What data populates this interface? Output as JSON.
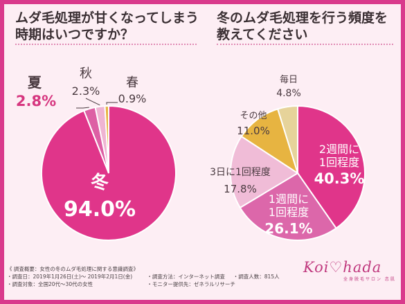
{
  "left_title": {
    "line1": "ムダ毛処理が甘くなってしまう",
    "line2": "時期はいつですか？"
  },
  "right_title": {
    "line1": "冬のムダ毛処理を行う頻度を",
    "line2": "教えてください"
  },
  "chart_data": [
    {
      "type": "pie",
      "title": "ムダ毛処理が甘くなってしまう時期はいつですか？",
      "slices": [
        {
          "label": "冬",
          "value": 94.0,
          "value_label": "94.0%",
          "color": "#e0358a"
        },
        {
          "label": "夏",
          "value": 2.8,
          "value_label": "2.8%",
          "color": "#dd5fa4"
        },
        {
          "label": "秋",
          "value": 2.3,
          "value_label": "2.3%",
          "color": "#efb4d2"
        },
        {
          "label": "春",
          "value": 0.9,
          "value_label": "0.9%",
          "color": "#e7b441"
        }
      ]
    },
    {
      "type": "pie",
      "title": "冬のムダ毛処理を行う頻度を教えてください",
      "slices": [
        {
          "label": "2週間に1回程度",
          "value": 40.3,
          "value_label": "40.3%",
          "color": "#e0358a"
        },
        {
          "label": "1週間に1回程度",
          "value": 26.1,
          "value_label": "26.1%",
          "color": "#dc67aa"
        },
        {
          "label": "3日に1回程度",
          "value": 17.8,
          "value_label": "17.8%",
          "color": "#f0bcd7"
        },
        {
          "label": "その他",
          "value": 11.0,
          "value_label": "11.0%",
          "color": "#e7b441"
        },
        {
          "label": "毎日",
          "value": 4.8,
          "value_label": "4.8%",
          "color": "#e6d39a"
        }
      ]
    }
  ],
  "footer": {
    "title": "《 調査概要：女性の冬のムダ毛処理に関する意識調査》",
    "period": "・調査日：2019年1月26日(土)〜 2019年2月1日(金)",
    "method": "・調査方法：インターネット調査",
    "count": "・調査人数：815人",
    "target": "・調査対象：全国20代〜30代の女性",
    "provider": "・モニター提供先：ゼネラルリサーチ"
  },
  "logo": {
    "text": "Koi♡hada",
    "subtitle": "全身脱毛サロン 恋肌"
  }
}
